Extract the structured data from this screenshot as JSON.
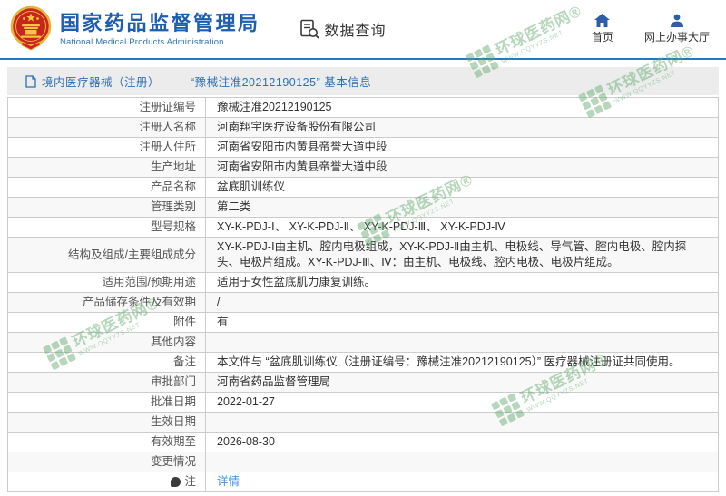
{
  "header": {
    "title": "国家药品监督管理局",
    "subtitle": "National Medical Products Administration",
    "query_label": "数据查询",
    "nav": [
      {
        "label": "首页"
      },
      {
        "label": "网上办事大厅"
      }
    ]
  },
  "breadcrumb": {
    "text": "境内医疗器械（注册） —— “豫械注准20212190125” 基本信息"
  },
  "table": {
    "rows": [
      {
        "label": "注册证编号",
        "value": "豫械注准20212190125"
      },
      {
        "label": "注册人名称",
        "value": "河南翔宇医疗设备股份有限公司"
      },
      {
        "label": "注册人住所",
        "value": "河南省安阳市内黄县帝誉大道中段"
      },
      {
        "label": "生产地址",
        "value": "河南省安阳市内黄县帝誉大道中段"
      },
      {
        "label": "产品名称",
        "value": "盆底肌训练仪"
      },
      {
        "label": "管理类别",
        "value": "第二类"
      },
      {
        "label": "型号规格",
        "value": "XY-K-PDJ-Ⅰ、 XY-K-PDJ-Ⅱ、 XY-K-PDJ-Ⅲ、 XY-K-PDJ-Ⅳ"
      },
      {
        "label": "结构及组成/主要组成成分",
        "value": "XY-K-PDJ-Ⅰ由主机、腔内电极组成，XY-K-PDJ-Ⅱ由主机、电极线、导气管、腔内电极、腔内探头、电极片组成。XY-K-PDJ-Ⅲ、Ⅳ：由主机、电极线、腔内电极、电极片组成。"
      },
      {
        "label": "适用范围/预期用途",
        "value": "适用于女性盆底肌力康复训练。"
      },
      {
        "label": "产品储存条件及有效期",
        "value": "/"
      },
      {
        "label": "附件",
        "value": "有"
      },
      {
        "label": "其他内容",
        "value": ""
      },
      {
        "label": "备注",
        "value": "本文件与 “盆底肌训练仪（注册证编号：豫械注准20212190125）” 医疗器械注册证共同使用。"
      },
      {
        "label": "审批部门",
        "value": "河南省药品监督管理局"
      },
      {
        "label": "批准日期",
        "value": "2022-01-27"
      },
      {
        "label": "生效日期",
        "value": ""
      },
      {
        "label": "有效期至",
        "value": "2026-08-30"
      },
      {
        "label": "变更情况",
        "value": ""
      },
      {
        "label": "注",
        "label_icon": "note",
        "value": "详情",
        "value_is_link": true
      }
    ]
  },
  "watermark": {
    "name": "环球医药网®",
    "url": "www.qqyyzs.net"
  },
  "colors": {
    "accent_blue": "#1d5fae",
    "divider_blue": "#2579be",
    "link_blue": "#4193de",
    "watermark_green": "#5ea86c"
  }
}
